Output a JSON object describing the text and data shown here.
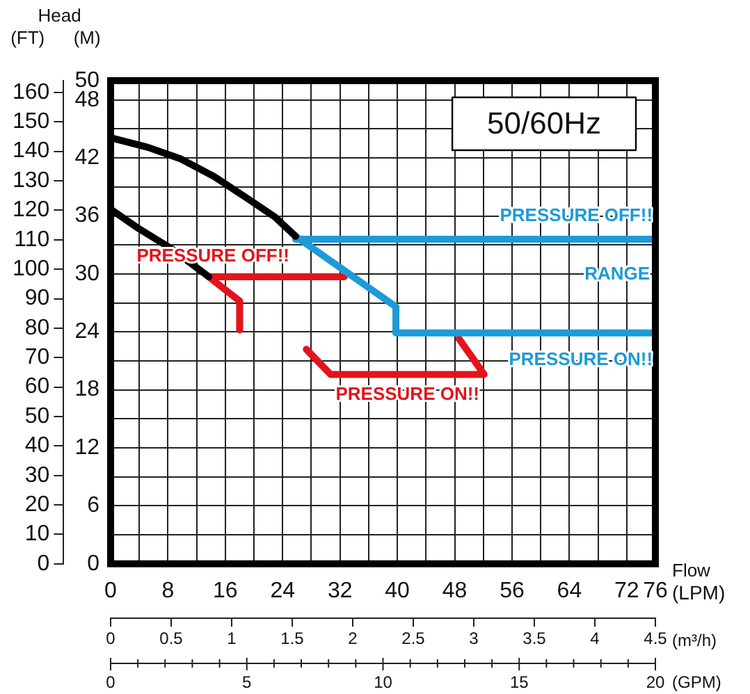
{
  "chart_data": {
    "type": "line",
    "title": "50/60Hz",
    "ylabel": "(M)",
    "y2label": "(FT)",
    "xlabel": "(LPM)",
    "x2label": "(m³/h)",
    "annotations": [
      "Head",
      "Flow",
      "PRESSURE OFF!!",
      "PRESSURE ON!!",
      "PRESSURE OFF!!",
      "RANGE",
      "PRESSURE ON!!",
      "(GPM)",
      "0",
      "5",
      "10",
      "15",
      "20"
    ],
    "series": [
      {
        "color": "#000000",
        "x": [
          0,
          5.2,
          9.8,
          14.4,
          18.9,
          22.9,
          25.8
        ],
        "values": [
          44.1,
          43.1,
          41.9,
          40.1,
          37.9,
          35.9,
          33.9
        ]
      },
      {
        "color": "#000000",
        "x": [
          0,
          3.9,
          8.5,
          13.7
        ],
        "values": [
          36.7,
          34.7,
          32.6,
          29.7
        ]
      },
      {
        "color": "#1e9ad6",
        "x": [
          25.8,
          39.8,
          39.8,
          76,
          50,
          25.8,
          76
        ],
        "values": [
          33.9,
          26.6,
          23.9,
          23.9,
          null,
          33.6,
          33.6
        ]
      },
      {
        "color": "#e3141c",
        "x": [
          13.7,
          32.6,
          20,
          13.7,
          18,
          18,
          20,
          27.3,
          30.7,
          52.1,
          48.6
        ],
        "values": [
          29.7,
          29.7,
          null,
          29.7,
          27.2,
          24.2,
          null,
          22.2,
          19.6,
          19.6,
          23.3
        ]
      }
    ],
    "xlim": [
      0,
      76
    ],
    "xticks": [
      0,
      {
        "value": 4,
        "label": null
      },
      8,
      {
        "value": 12,
        "label": null
      },
      16,
      {
        "value": 20,
        "label": null
      },
      24,
      {
        "value": 28,
        "label": null
      },
      32,
      {
        "value": 36,
        "label": null
      },
      40,
      {
        "value": 44,
        "label": null
      },
      48,
      {
        "value": 52,
        "label": null
      },
      56,
      {
        "value": 60,
        "label": null
      },
      64,
      {
        "value": 68,
        "label": null
      },
      72,
      76
    ],
    "x2lim": [
      0,
      4.5
    ],
    "x2ticks": [
      0,
      0.5,
      1,
      1.5,
      2,
      2.5,
      3,
      3.5,
      4,
      4.5
    ],
    "ylim": [
      0,
      50
    ],
    "yticks": [
      0,
      {
        "value": 3,
        "label": null
      },
      6,
      {
        "value": 9,
        "label": null
      },
      12,
      {
        "value": 15,
        "label": null
      },
      18,
      {
        "value": 21,
        "label": null
      },
      24,
      {
        "value": 27,
        "label": null
      },
      30,
      {
        "value": 33,
        "label": null
      },
      36,
      {
        "value": 39,
        "label": null
      },
      42,
      {
        "value": 45,
        "label": null
      },
      48,
      50
    ],
    "y2lim": [
      0,
      164
    ],
    "y2ticks": [
      0,
      10,
      20,
      30,
      40,
      50,
      60,
      70,
      80,
      90,
      100,
      110,
      120,
      130,
      140,
      150,
      160
    ],
    "grid": true,
    "legend": false,
    "marker": "none",
    "line_style": "solid"
  }
}
